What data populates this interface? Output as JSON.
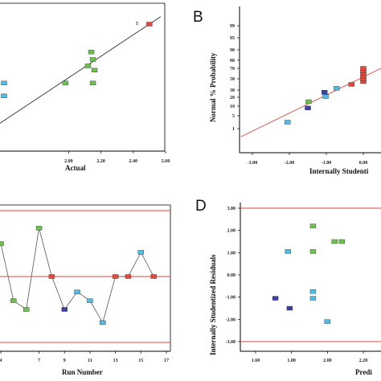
{
  "colors": {
    "fit_line": "#e0453e",
    "limit_line": "#e0453e",
    "axis": "#000000",
    "connector": "#555555"
  },
  "panels": {
    "A": {
      "label": "",
      "annotation": "5"
    },
    "B": {
      "label": "B"
    },
    "C": {
      "label": ""
    },
    "D": {
      "label": "D"
    }
  },
  "chart_data": [
    {
      "panel": "A",
      "type": "scatter",
      "xlabel": "Actual",
      "ylabel": "",
      "xlim": [
        1.55,
        2.6
      ],
      "ylim": [
        1.55,
        2.6
      ],
      "xticks": [
        "2.00",
        "2.20",
        "2.40",
        "2.60"
      ],
      "reference_line": "y = x",
      "points": [
        {
          "x": 1.6,
          "y": 1.95,
          "color": "#4dbde8"
        },
        {
          "x": 1.6,
          "y": 1.83,
          "color": "#4dbde8"
        },
        {
          "x": 1.98,
          "y": 1.95,
          "color": "#6cc24a"
        },
        {
          "x": 2.12,
          "y": 2.11,
          "color": "#6cc24a"
        },
        {
          "x": 2.14,
          "y": 2.24,
          "color": "#6cc24a"
        },
        {
          "x": 2.15,
          "y": 2.17,
          "color": "#6cc24a"
        },
        {
          "x": 2.16,
          "y": 2.07,
          "color": "#6cc24a"
        },
        {
          "x": 2.15,
          "y": 1.95,
          "color": "#6cc24a"
        },
        {
          "x": 2.5,
          "y": 2.5,
          "color": "#e8473c"
        }
      ]
    },
    {
      "panel": "B",
      "type": "scatter",
      "xlabel": "Internally Studenti",
      "ylabel": "Normal % Probability",
      "xlim": [
        -3.2,
        0.35
      ],
      "ylim": [
        0,
        100
      ],
      "xticks": [
        "-3.00",
        "-2.00",
        "-1.00",
        "0.00"
      ],
      "yticks": [
        "1",
        "5",
        "10",
        "20",
        "30",
        "50",
        "70",
        "80",
        "90",
        "95",
        "99"
      ],
      "reference_line": "normal",
      "points": [
        {
          "x": -2.05,
          "y": 3,
          "color": "#4dbde8"
        },
        {
          "x": -1.5,
          "y": 9,
          "color": "#3b3fa6"
        },
        {
          "x": -1.48,
          "y": 15,
          "color": "#6cc24a"
        },
        {
          "x": -1.02,
          "y": 21,
          "color": "#4dbde8"
        },
        {
          "x": -1.05,
          "y": 27,
          "color": "#3b3fa6"
        },
        {
          "x": -0.72,
          "y": 33,
          "color": "#4dbde8"
        },
        {
          "x": -0.32,
          "y": 40,
          "color": "#e8473c"
        },
        {
          "x": 0.0,
          "y": 45,
          "color": "#e8473c"
        },
        {
          "x": 0.0,
          "y": 50,
          "color": "#e8473c"
        },
        {
          "x": 0.0,
          "y": 55,
          "color": "#e8473c"
        },
        {
          "x": 0.0,
          "y": 60,
          "color": "#e8473c"
        },
        {
          "x": 0.0,
          "y": 65,
          "color": "#e8473c"
        },
        {
          "x": 0.0,
          "y": 70,
          "color": "#e8473c"
        }
      ]
    },
    {
      "panel": "C",
      "type": "line",
      "xlabel": "Run Number",
      "ylabel": "",
      "xlim": [
        4,
        17.3
      ],
      "ylim": [
        -3.3,
        3.3
      ],
      "xticks": [
        "4",
        "7",
        "9",
        "11",
        "13",
        "15",
        "17"
      ],
      "limits": [
        3.0,
        -3.0
      ],
      "center": 0,
      "points": [
        {
          "x": 4,
          "y": 1.5,
          "color": "#6cc24a"
        },
        {
          "x": 5,
          "y": -1.1,
          "color": "#6cc24a"
        },
        {
          "x": 6,
          "y": -1.5,
          "color": "#6cc24a"
        },
        {
          "x": 7,
          "y": 2.2,
          "color": "#6cc24a"
        },
        {
          "x": 8,
          "y": 0,
          "color": "#e8473c"
        },
        {
          "x": 9,
          "y": -1.5,
          "color": "#3b3fa6"
        },
        {
          "x": 10,
          "y": -0.7,
          "color": "#4dbde8"
        },
        {
          "x": 11,
          "y": -1.1,
          "color": "#4dbde8"
        },
        {
          "x": 12,
          "y": -2.1,
          "color": "#4dbde8"
        },
        {
          "x": 13,
          "y": 0,
          "color": "#e8473c"
        },
        {
          "x": 14,
          "y": 0,
          "color": "#e8473c"
        },
        {
          "x": 15,
          "y": 1.1,
          "color": "#4dbde8"
        },
        {
          "x": 16,
          "y": 0,
          "color": "#e8473c"
        }
      ]
    },
    {
      "panel": "D",
      "type": "scatter",
      "xlabel": "Predi",
      "ylabel": "Internally Studentized Residuals",
      "xlim": [
        1.4,
        2.35
      ],
      "ylim": [
        -3.3,
        3.3
      ],
      "xticks": [
        "1.60",
        "1.80",
        "2.00",
        "2.20"
      ],
      "yticks": [
        "3.00",
        "2.00",
        "1.00",
        "0.00",
        "-1.00",
        "-2.00",
        "-3.00"
      ],
      "limits": [
        3.0,
        -3.0
      ],
      "points": [
        {
          "x": 1.71,
          "y": -1.05,
          "color": "#3b3fa6"
        },
        {
          "x": 1.79,
          "y": -1.5,
          "color": "#3b3fa6"
        },
        {
          "x": 1.78,
          "y": 1.05,
          "color": "#4dbde8"
        },
        {
          "x": 1.92,
          "y": 2.2,
          "color": "#6cc24a"
        },
        {
          "x": 1.92,
          "y": 1.05,
          "color": "#6cc24a"
        },
        {
          "x": 1.92,
          "y": -0.75,
          "color": "#4dbde8"
        },
        {
          "x": 1.92,
          "y": -1.05,
          "color": "#4dbde8"
        },
        {
          "x": 2.0,
          "y": -2.1,
          "color": "#4dbde8"
        },
        {
          "x": 2.04,
          "y": 1.5,
          "color": "#6cc24a"
        },
        {
          "x": 2.08,
          "y": 1.5,
          "color": "#6cc24a"
        }
      ]
    }
  ]
}
